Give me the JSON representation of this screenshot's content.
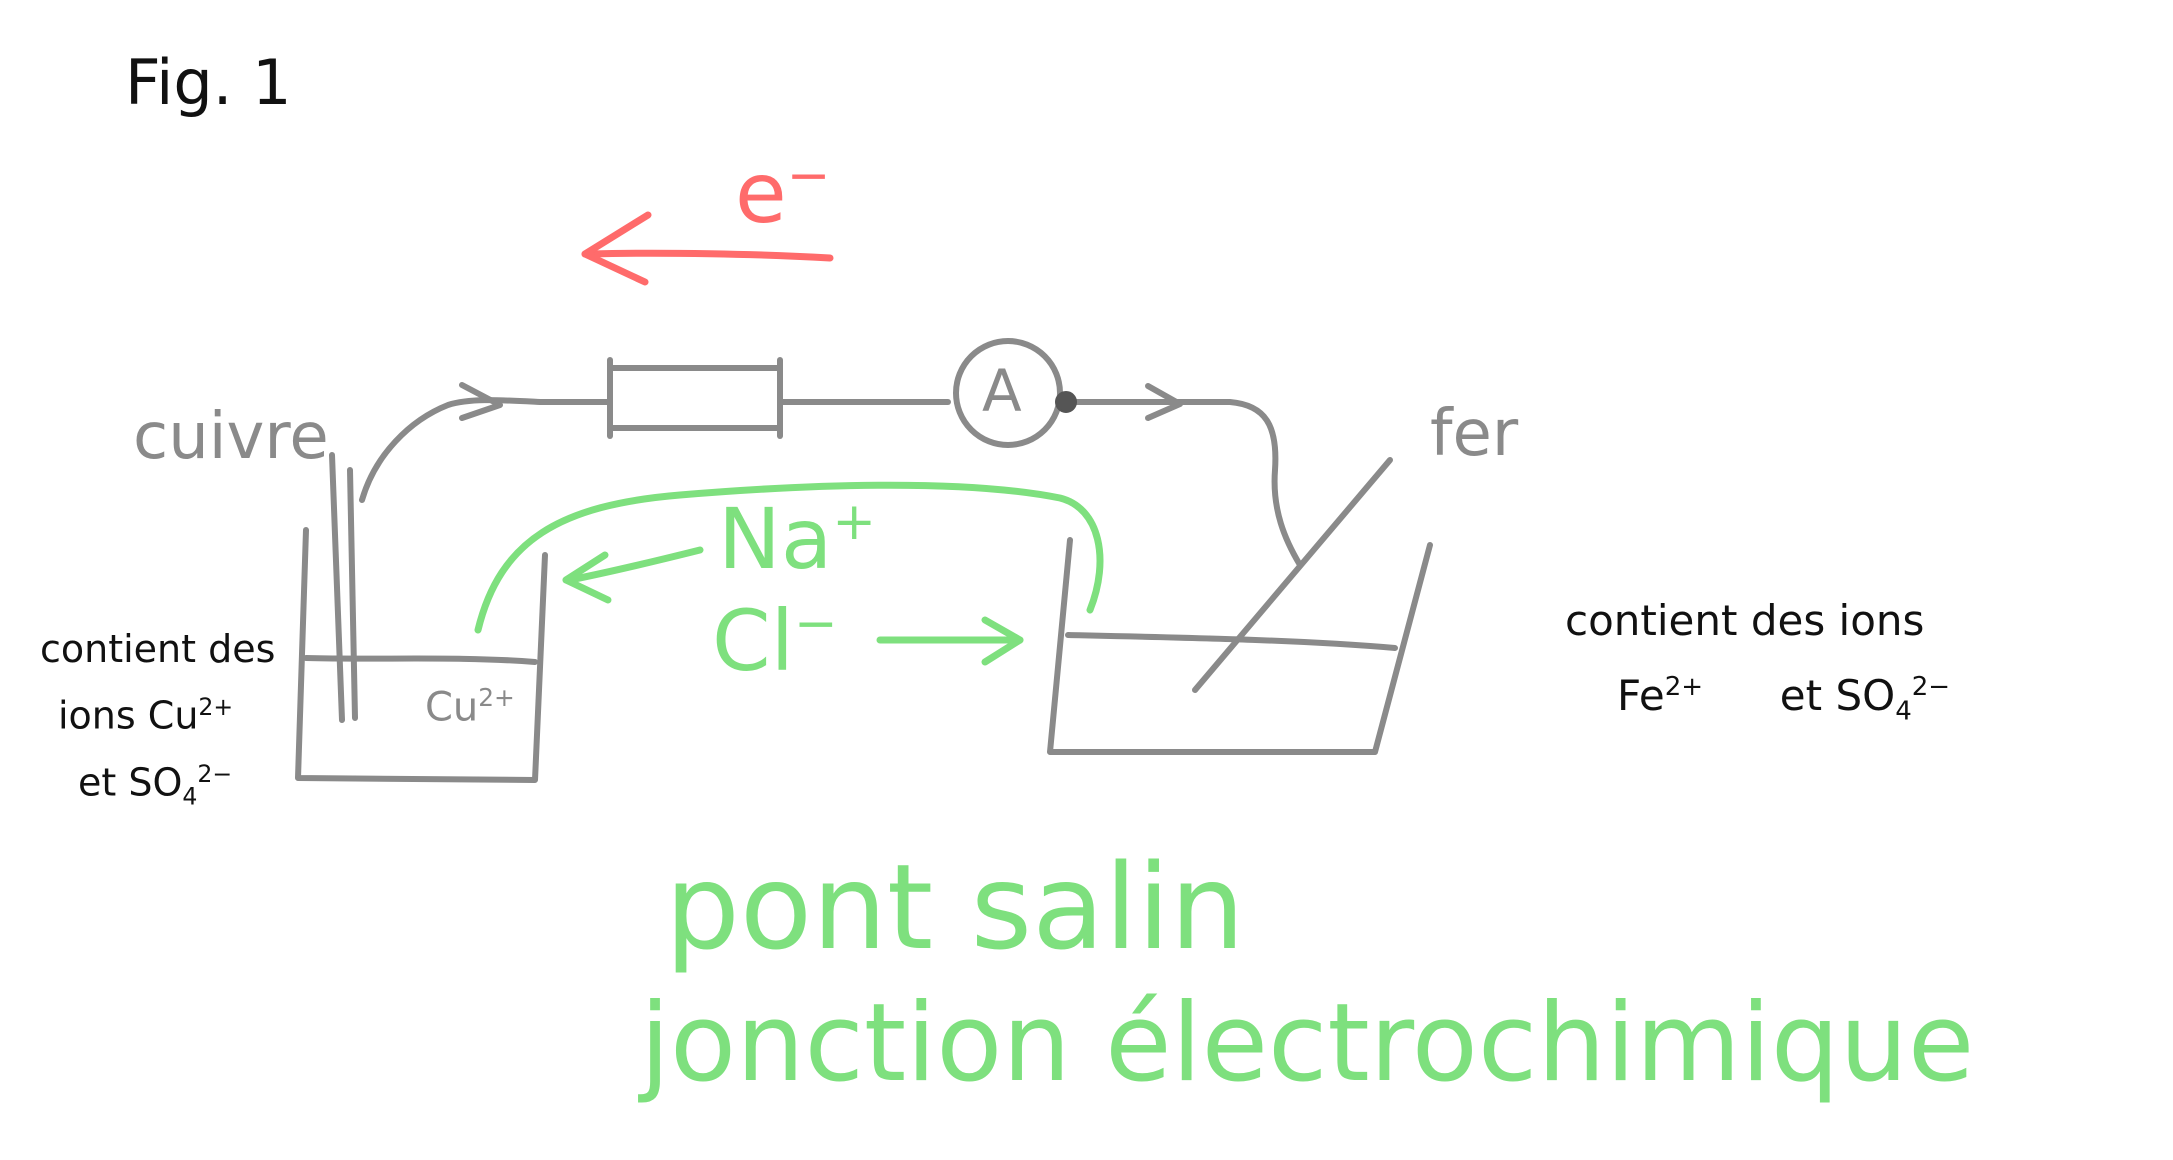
{
  "figure": {
    "label": "Fig. 1"
  },
  "electron": {
    "symbol": "e",
    "charge": "−"
  },
  "electrodes": {
    "left": "cuivre",
    "right": "fer"
  },
  "ammeter": {
    "symbol": "A"
  },
  "salt_bridge": {
    "cation": {
      "symbol": "Na",
      "charge": "+"
    },
    "anion": {
      "symbol": "Cl",
      "charge": "−"
    },
    "caption_line1": "pont salin",
    "caption_line2": "jonction électrochimique"
  },
  "left_cell": {
    "ion_in_beaker": {
      "symbol": "Cu",
      "charge": "2+"
    },
    "note_line1": "contient des",
    "note_line2_prefix": "ions ",
    "note_line2_ion": "Cu",
    "note_line2_charge": "2+",
    "note_line3_prefix": "et ",
    "note_line3_ion": "SO",
    "note_line3_sub": "4",
    "note_line3_sup": "2−"
  },
  "right_cell": {
    "note_line1": "contient des ions",
    "note_line2_ion1": "Fe",
    "note_line2_charge1": "2+",
    "note_line2_mid": "et ",
    "note_line2_ion2": "SO",
    "note_line2_sub": "4",
    "note_line2_sup": "2−"
  },
  "colors": {
    "ink": "#111111",
    "wire": "#8a8a8a",
    "electron_flow": "#ff6b6b",
    "salt_bridge": "#7ee07e"
  }
}
